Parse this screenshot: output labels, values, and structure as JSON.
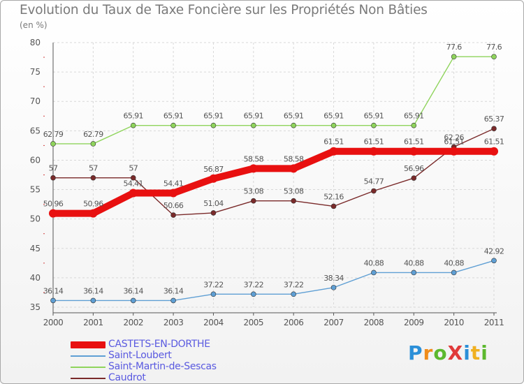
{
  "title": "Evolution du Taux de Taxe Foncière sur les Propriétés Non Bâties",
  "subtitle": "(en %)",
  "logo": {
    "text": "ProXiti",
    "letters": [
      "P",
      "r",
      "o",
      "X",
      "i",
      "t",
      "i"
    ],
    "colors": [
      "#2b8fd8",
      "#f08c1a",
      "#5cb82e",
      "#e03a3a",
      "#2b8fd8",
      "#f0b020",
      "#5cb82e"
    ]
  },
  "chart_data": {
    "type": "line",
    "title": "Evolution du Taux de Taxe Foncière sur les Propriétés Non Bâties",
    "subtitle": "(en %)",
    "xlabel": "",
    "ylabel": "",
    "x": [
      2000,
      2001,
      2002,
      2003,
      2004,
      2005,
      2006,
      2007,
      2008,
      2009,
      2010,
      2011
    ],
    "x_labels": [
      "2000",
      "2001",
      "2002",
      "2003",
      "2004",
      "2005",
      "2006",
      "2007",
      "2008",
      "2009",
      "2010",
      "2011"
    ],
    "ylim": [
      35,
      80
    ],
    "yticks": [
      35,
      40,
      45,
      50,
      55,
      60,
      65,
      70,
      75,
      80
    ],
    "grid": true,
    "legend_position": "bottom-left",
    "series": [
      {
        "name": "Saint-Martin-de-Sescas",
        "color": "#8fd45c",
        "values": [
          62.79,
          62.79,
          65.91,
          65.91,
          65.91,
          65.91,
          65.91,
          65.91,
          65.91,
          65.91,
          77.6,
          77.6
        ],
        "labels": [
          "62.79",
          "62.79",
          "65.91",
          "65.91",
          "65.91",
          "65.91",
          "65.91",
          "65.91",
          "65.91",
          "65.91",
          "77.6",
          "77.6"
        ]
      },
      {
        "name": "Caudrot",
        "color": "#7a2a2a",
        "values": [
          57,
          57,
          57,
          50.66,
          51.04,
          53.08,
          53.08,
          52.16,
          54.77,
          56.96,
          62.26,
          65.37
        ],
        "labels": [
          "57",
          "57",
          "57",
          "50.66",
          "51.04",
          "53.08",
          "53.08",
          "52.16",
          "54.77",
          "56.96",
          "62.26",
          "65.37"
        ]
      },
      {
        "name": "Saint-Loubert",
        "color": "#5f9fd4",
        "values": [
          36.14,
          36.14,
          36.14,
          36.14,
          37.22,
          37.22,
          37.22,
          38.34,
          40.88,
          40.88,
          40.88,
          42.92
        ],
        "labels": [
          "36.14",
          "36.14",
          "36.14",
          "36.14",
          "37.22",
          "37.22",
          "37.22",
          "38.34",
          "40.88",
          "40.88",
          "40.88",
          "42.92"
        ]
      },
      {
        "name": "CASTETS-EN-DORTHE",
        "color": "#e81010",
        "values": [
          50.96,
          50.96,
          54.41,
          54.41,
          56.87,
          58.58,
          58.58,
          61.51,
          61.51,
          61.51,
          61.51,
          61.51
        ],
        "labels": [
          "50.96",
          "50.96",
          "54.41",
          "54.41",
          "56.87",
          "58.58",
          "58.58",
          "61.51",
          "61.51",
          "61.51",
          "61.51",
          "61.51"
        ]
      }
    ]
  },
  "legend": [
    {
      "name": "CASTETS-EN-DORTHE",
      "color": "#e81010",
      "thick": true
    },
    {
      "name": "Saint-Loubert",
      "color": "#5f9fd4",
      "thick": false
    },
    {
      "name": "Saint-Martin-de-Sescas",
      "color": "#8fd45c",
      "thick": false
    },
    {
      "name": "Caudrot",
      "color": "#7a2a2a",
      "thick": false
    }
  ]
}
